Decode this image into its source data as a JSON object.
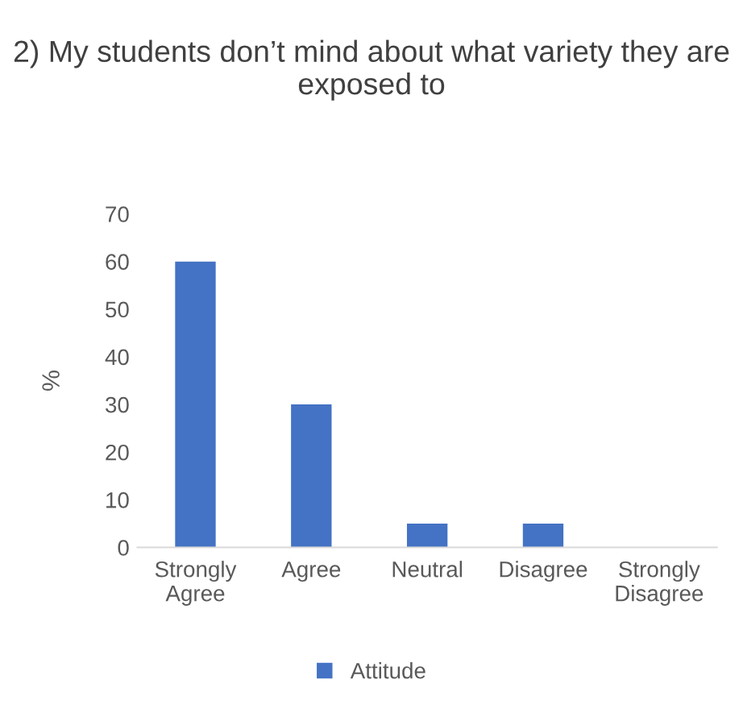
{
  "chart_data": {
    "type": "bar",
    "title": "2) My students don’t mind about what variety they are exposed to",
    "ylabel": "%",
    "categories": [
      "Strongly\nAgree",
      "Agree",
      "Neutral",
      "Disagree",
      "Strongly\nDisagree"
    ],
    "series": [
      {
        "name": "Attitude",
        "color": "#4472c4",
        "values": [
          60,
          30,
          5,
          5,
          0
        ]
      }
    ],
    "ylim": [
      0,
      70
    ],
    "yticks": [
      0,
      10,
      20,
      30,
      40,
      50,
      60,
      70
    ],
    "grid": false,
    "legend": "bottom"
  }
}
